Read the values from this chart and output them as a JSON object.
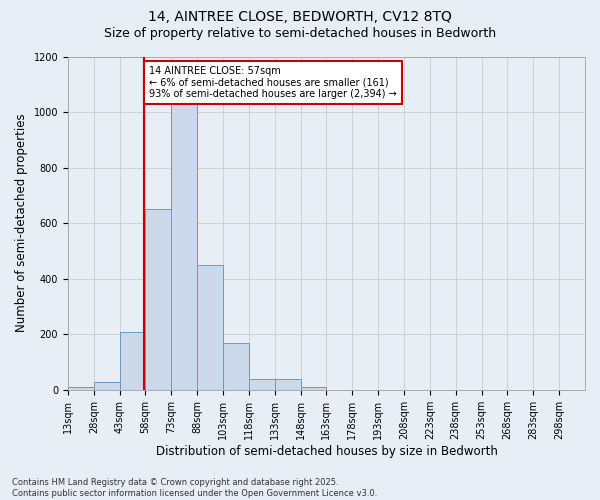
{
  "title_line1": "14, AINTREE CLOSE, BEDWORTH, CV12 8TQ",
  "title_line2": "Size of property relative to semi-detached houses in Bedworth",
  "xlabel": "Distribution of semi-detached houses by size in Bedworth",
  "ylabel": "Number of semi-detached properties",
  "footnote": "Contains HM Land Registry data © Crown copyright and database right 2025.\nContains public sector information licensed under the Open Government Licence v3.0.",
  "bin_edges": [
    13,
    28,
    43,
    58,
    73,
    88,
    103,
    118,
    133,
    148,
    163,
    178,
    193,
    208,
    223,
    238,
    253,
    268,
    283,
    298,
    313
  ],
  "bin_counts": [
    10,
    30,
    210,
    650,
    1050,
    450,
    170,
    40,
    40,
    10,
    0,
    0,
    0,
    0,
    0,
    0,
    0,
    0,
    0,
    0
  ],
  "bar_facecolor": "#ccd9ea",
  "bar_edgecolor": "#6a9abf",
  "property_size": 57,
  "vline_color": "#cc0000",
  "annotation_text": "14 AINTREE CLOSE: 57sqm\n← 6% of semi-detached houses are smaller (161)\n93% of semi-detached houses are larger (2,394) →",
  "annotation_box_edgecolor": "#cc0000",
  "annotation_box_facecolor": "#ffffff",
  "ylim": [
    0,
    1200
  ],
  "yticks": [
    0,
    200,
    400,
    600,
    800,
    1000,
    1200
  ],
  "grid_color": "#cccccc",
  "background_color": "#e8eef5",
  "title_fontsize": 10,
  "subtitle_fontsize": 9,
  "tick_label_fontsize": 7,
  "axis_label_fontsize": 8.5,
  "footnote_fontsize": 6
}
